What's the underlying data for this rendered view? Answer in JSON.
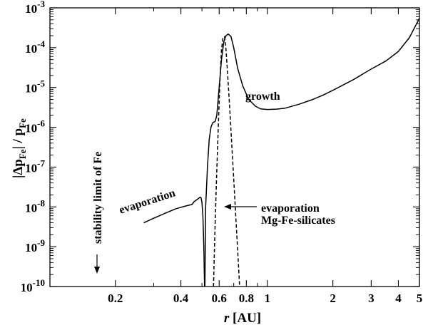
{
  "chart_data": {
    "type": "line",
    "xlabel": "r [AU]",
    "ylabel": "|Δp_Fe| / p_Fe",
    "xscale": "log",
    "yscale": "log",
    "xlim": [
      0.1,
      5
    ],
    "ylim": [
      1e-10,
      0.001
    ],
    "grid": false,
    "x_ticks": [
      {
        "value": 0.2,
        "label": "0.2"
      },
      {
        "value": 0.4,
        "label": "0.4"
      },
      {
        "value": 0.6,
        "label": "0.6"
      },
      {
        "value": 0.8,
        "label": "0.8"
      },
      {
        "value": 1,
        "label": "1"
      },
      {
        "value": 2,
        "label": "2"
      },
      {
        "value": 3,
        "label": "3"
      },
      {
        "value": 4,
        "label": "4"
      },
      {
        "value": 5,
        "label": "5"
      }
    ],
    "x_minor_ticks": [
      0.3,
      0.5,
      0.7,
      0.9
    ],
    "y_ticks": [
      {
        "value": 1e-10,
        "base": "10",
        "exp": "-10"
      },
      {
        "value": 1e-09,
        "base": "10",
        "exp": "-9"
      },
      {
        "value": 1e-08,
        "base": "10",
        "exp": "-8"
      },
      {
        "value": 1e-07,
        "base": "10",
        "exp": "-7"
      },
      {
        "value": 1e-06,
        "base": "10",
        "exp": "-6"
      },
      {
        "value": 1e-05,
        "base": "10",
        "exp": "-5"
      },
      {
        "value": 0.0001,
        "base": "10",
        "exp": "-4"
      },
      {
        "value": 0.001,
        "base": "10",
        "exp": "-3"
      }
    ],
    "series": [
      {
        "style": "solid",
        "points": [
          [
            0.27,
            4e-09
          ],
          [
            0.3,
            5.2e-09
          ],
          [
            0.34,
            7e-09
          ],
          [
            0.38,
            9e-09
          ],
          [
            0.42,
            1.05e-08
          ],
          [
            0.45,
            1.15e-08
          ],
          [
            0.46,
            1.35e-08
          ],
          [
            0.48,
            1.6e-08
          ],
          [
            0.49,
            1.75e-08
          ],
          [
            0.495,
            1.7e-08
          ],
          [
            0.5,
            1.3e-08
          ],
          [
            0.505,
            6e-09
          ],
          [
            0.51,
            1e-09
          ],
          [
            0.514,
            1e-10
          ]
        ]
      },
      {
        "style": "solid",
        "points": [
          [
            0.516,
            1e-10
          ],
          [
            0.52,
            1e-08
          ],
          [
            0.53,
            1e-07
          ],
          [
            0.54,
            5e-07
          ],
          [
            0.55,
            1e-06
          ],
          [
            0.56,
            1.3e-06
          ],
          [
            0.575,
            1.4e-06
          ],
          [
            0.585,
            2e-06
          ],
          [
            0.6,
            1e-05
          ],
          [
            0.615,
            5e-05
          ],
          [
            0.63,
            0.00014
          ],
          [
            0.645,
            0.0002
          ],
          [
            0.66,
            0.00022
          ],
          [
            0.68,
            0.00019
          ],
          [
            0.7,
            0.0001
          ],
          [
            0.73,
            3e-05
          ],
          [
            0.77,
            1.1e-05
          ],
          [
            0.82,
            5e-06
          ],
          [
            0.88,
            3.4e-06
          ],
          [
            0.93,
            2.9e-06
          ],
          [
            1.0,
            2.8e-06
          ],
          [
            1.1,
            2.85e-06
          ],
          [
            1.2,
            3e-06
          ],
          [
            1.4,
            3.8e-06
          ],
          [
            1.6,
            4.9e-06
          ],
          [
            1.8,
            6.4e-06
          ],
          [
            2.0,
            8.5e-06
          ],
          [
            2.5,
            1.6e-05
          ],
          [
            3.0,
            2.9e-05
          ],
          [
            3.5,
            4.6e-05
          ],
          [
            4.0,
            8e-05
          ],
          [
            4.5,
            0.00018
          ],
          [
            5.0,
            0.00055
          ]
        ]
      },
      {
        "style": "dashed",
        "points": [
          [
            0.565,
            1e-10
          ],
          [
            0.575,
            4e-09
          ],
          [
            0.585,
            8e-08
          ],
          [
            0.595,
            1.2e-06
          ],
          [
            0.605,
            1.5e-05
          ],
          [
            0.615,
            9e-05
          ],
          [
            0.625,
            0.00018
          ],
          [
            0.635,
            0.00019
          ],
          [
            0.645,
            9e-05
          ],
          [
            0.655,
            2.5e-05
          ],
          [
            0.67,
            3.5e-06
          ],
          [
            0.685,
            4e-07
          ],
          [
            0.7,
            5e-08
          ],
          [
            0.715,
            6e-09
          ],
          [
            0.73,
            8e-10
          ],
          [
            0.745,
            1e-10
          ]
        ]
      }
    ],
    "annotations": {
      "growth": "growth",
      "evaporation_left": "evaporation",
      "evaporation_right_1": "evaporation",
      "evaporation_right_2": "Mg-Fe-silicates",
      "stability": "stability limit of Fe"
    }
  }
}
